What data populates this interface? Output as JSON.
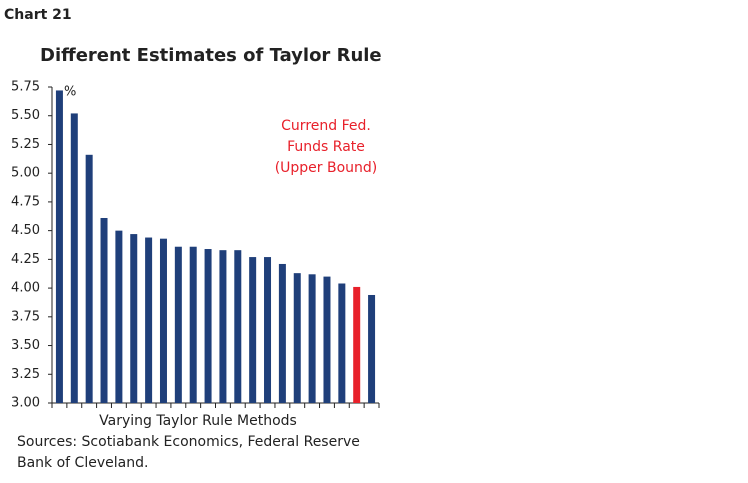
{
  "chart_data": {
    "type": "bar",
    "chart_label": "Chart 21",
    "title": "Different Estimates of Taylor Rule",
    "y_unit": "%",
    "x_label": "Varying Taylor Rule Methods",
    "source": [
      "Sources: Scotiabank Economics, Federal Reserve",
      "Bank of Cleveland."
    ],
    "annotation": [
      "Currend Fed.",
      "Funds Rate",
      "(Upper Bound)"
    ],
    "annotation_color": "#e8202a",
    "categories": [
      null,
      null,
      null,
      null,
      null,
      null,
      null,
      null,
      null,
      null,
      null,
      null,
      null,
      null,
      null,
      null,
      null,
      null,
      null,
      null,
      null,
      null
    ],
    "values": [
      5.72,
      5.52,
      5.16,
      4.61,
      4.5,
      4.47,
      4.44,
      4.43,
      4.36,
      4.36,
      4.34,
      4.33,
      4.33,
      4.27,
      4.27,
      4.21,
      4.13,
      4.12,
      4.1,
      4.04,
      4.01,
      3.94
    ],
    "colors": [
      "#1f3f7a",
      "#1f3f7a",
      "#1f3f7a",
      "#1f3f7a",
      "#1f3f7a",
      "#1f3f7a",
      "#1f3f7a",
      "#1f3f7a",
      "#1f3f7a",
      "#1f3f7a",
      "#1f3f7a",
      "#1f3f7a",
      "#1f3f7a",
      "#1f3f7a",
      "#1f3f7a",
      "#1f3f7a",
      "#1f3f7a",
      "#1f3f7a",
      "#1f3f7a",
      "#1f3f7a",
      "#e8202a",
      "#1f3f7a"
    ],
    "ylim": [
      3.0,
      5.75
    ],
    "yticks": [
      {
        "value": 3.0,
        "label": "3.00"
      },
      {
        "value": 3.25,
        "label": "3.25"
      },
      {
        "value": 3.5,
        "label": "3.50"
      },
      {
        "value": 3.75,
        "label": "3.75"
      },
      {
        "value": 4.0,
        "label": "4.00"
      },
      {
        "value": 4.25,
        "label": "4.25"
      },
      {
        "value": 4.5,
        "label": "4.50"
      },
      {
        "value": 4.75,
        "label": "4.75"
      },
      {
        "value": 5.0,
        "label": "5.00"
      },
      {
        "value": 5.25,
        "label": "5.25"
      },
      {
        "value": 5.5,
        "label": "5.50"
      },
      {
        "value": 5.75,
        "label": "5.75"
      }
    ],
    "grid": false
  }
}
